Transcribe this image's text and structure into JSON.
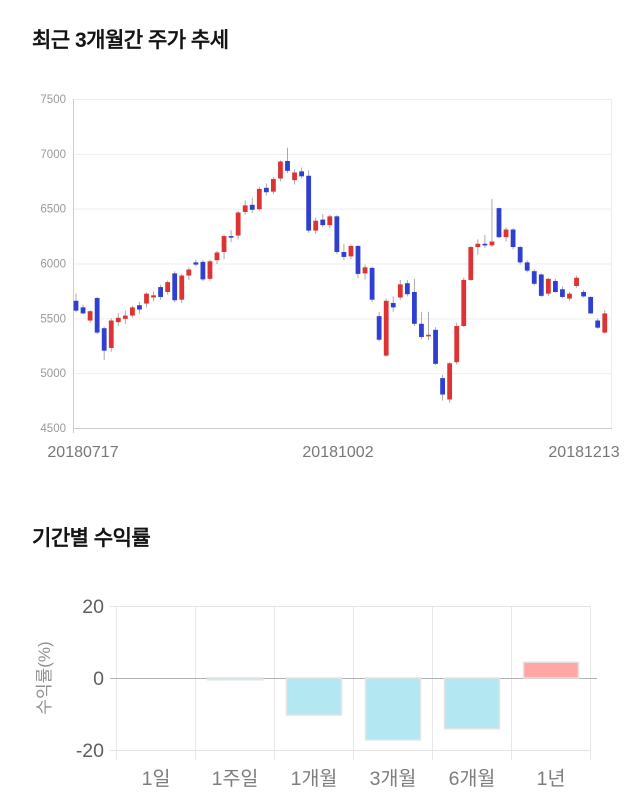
{
  "chart_data": [
    {
      "type": "candlestick",
      "title": "최근 3개월간 주가 추세",
      "x_labels": [
        "20180717",
        "20181002",
        "20181213"
      ],
      "y_ticks": [
        7500,
        7000,
        6500,
        6000,
        5500,
        5000,
        4500
      ],
      "ylim": [
        4500,
        7500
      ],
      "grid": true,
      "colors": {
        "bullish": "#dd3333",
        "bearish": "#2f3fd0",
        "wick": "#aaaaaa",
        "axis": "#cccccc",
        "gridline": "#ededed",
        "tick_text": "#999999",
        "date_text": "#777777"
      },
      "candles_ohlc": [
        [
          5660,
          5725,
          5555,
          5570
        ],
        [
          5600,
          5625,
          5540,
          5545
        ],
        [
          5480,
          5575,
          5460,
          5565
        ],
        [
          5685,
          5695,
          5355,
          5370
        ],
        [
          5410,
          5425,
          5120,
          5205
        ],
        [
          5230,
          5500,
          5195,
          5480
        ],
        [
          5465,
          5545,
          5430,
          5505
        ],
        [
          5495,
          5570,
          5450,
          5525
        ],
        [
          5525,
          5615,
          5505,
          5600
        ],
        [
          5620,
          5650,
          5545,
          5580
        ],
        [
          5635,
          5735,
          5600,
          5725
        ],
        [
          5690,
          5745,
          5655,
          5710
        ],
        [
          5785,
          5805,
          5670,
          5695
        ],
        [
          5740,
          5845,
          5715,
          5830
        ],
        [
          5910,
          5930,
          5645,
          5665
        ],
        [
          5670,
          5905,
          5640,
          5890
        ],
        [
          5890,
          5965,
          5850,
          5945
        ],
        [
          6010,
          6035,
          5975,
          5990
        ],
        [
          6015,
          6030,
          5840,
          5855
        ],
        [
          5860,
          6035,
          5845,
          6020
        ],
        [
          6030,
          6115,
          5995,
          6100
        ],
        [
          6105,
          6265,
          6040,
          6250
        ],
        [
          6250,
          6305,
          6195,
          6245
        ],
        [
          6255,
          6480,
          6220,
          6465
        ],
        [
          6470,
          6575,
          6445,
          6530
        ],
        [
          6535,
          6600,
          6460,
          6490
        ],
        [
          6495,
          6700,
          6480,
          6680
        ],
        [
          6690,
          6730,
          6620,
          6650
        ],
        [
          6655,
          6790,
          6630,
          6770
        ],
        [
          6775,
          6940,
          6750,
          6930
        ],
        [
          6935,
          7055,
          6825,
          6845
        ],
        [
          6760,
          6860,
          6720,
          6830
        ],
        [
          6840,
          6875,
          6775,
          6795
        ],
        [
          6800,
          6850,
          6280,
          6300
        ],
        [
          6300,
          6420,
          6270,
          6390
        ],
        [
          6400,
          6450,
          6330,
          6350
        ],
        [
          6350,
          6445,
          6320,
          6430
        ],
        [
          6430,
          6440,
          6085,
          6105
        ],
        [
          6105,
          6180,
          6030,
          6060
        ],
        [
          6065,
          6175,
          6040,
          6160
        ],
        [
          6160,
          6165,
          5865,
          5905
        ],
        [
          5910,
          5990,
          5855,
          5965
        ],
        [
          5960,
          5970,
          5650,
          5670
        ],
        [
          5520,
          5560,
          5290,
          5305
        ],
        [
          5160,
          5680,
          5150,
          5660
        ],
        [
          5640,
          5700,
          5560,
          5600
        ],
        [
          5690,
          5850,
          5670,
          5810
        ],
        [
          5820,
          5850,
          5700,
          5720
        ],
        [
          5740,
          5860,
          5430,
          5450
        ],
        [
          5450,
          5560,
          5310,
          5330
        ],
        [
          5340,
          5560,
          5300,
          5350
        ],
        [
          5395,
          5420,
          5075,
          5085
        ],
        [
          4955,
          4985,
          4750,
          4805
        ],
        [
          4760,
          5100,
          4730,
          5090
        ],
        [
          5100,
          5460,
          5080,
          5430
        ],
        [
          5430,
          5870,
          5420,
          5850
        ],
        [
          5850,
          6160,
          5840,
          6150
        ],
        [
          6150,
          6220,
          6080,
          6180
        ],
        [
          6180,
          6260,
          6140,
          6165
        ],
        [
          6165,
          6590,
          6150,
          6200
        ],
        [
          6505,
          6510,
          6230,
          6240
        ],
        [
          6240,
          6330,
          6200,
          6310
        ],
        [
          6310,
          6320,
          6130,
          6150
        ],
        [
          6150,
          6160,
          5990,
          6010
        ],
        [
          6010,
          6030,
          5920,
          5935
        ],
        [
          5930,
          5950,
          5800,
          5815
        ],
        [
          5900,
          5910,
          5695,
          5705
        ],
        [
          5725,
          5870,
          5705,
          5860
        ],
        [
          5840,
          5860,
          5735,
          5740
        ],
        [
          5765,
          5790,
          5685,
          5695
        ],
        [
          5680,
          5740,
          5660,
          5725
        ],
        [
          5795,
          5890,
          5780,
          5870
        ],
        [
          5740,
          5760,
          5690,
          5700
        ],
        [
          5695,
          5700,
          5540,
          5545
        ],
        [
          5480,
          5500,
          5405,
          5415
        ],
        [
          5370,
          5575,
          5360,
          5545
        ]
      ]
    },
    {
      "type": "bar",
      "title": "기간별 수익률",
      "ylabel": "수익률(%)",
      "categories": [
        "1일",
        "1주일",
        "1개월",
        "3개월",
        "6개월",
        "1년"
      ],
      "values": [
        0,
        -0.5,
        -10.3,
        -17.2,
        -14.1,
        4.4
      ],
      "y_ticks": [
        20,
        0,
        -20
      ],
      "ylim": [
        -20,
        20
      ],
      "grid": true,
      "colors": {
        "positive": "#ffa6a6",
        "negative": "#b3e8f2",
        "bar_border": "#e4e4e4",
        "zero_line": "#b0b0b0",
        "gridline": "#e3e3e3",
        "tick_text": "#5f5f5f",
        "category_text": "#7d7d7d",
        "ylabel_text": "#909090"
      }
    }
  ]
}
